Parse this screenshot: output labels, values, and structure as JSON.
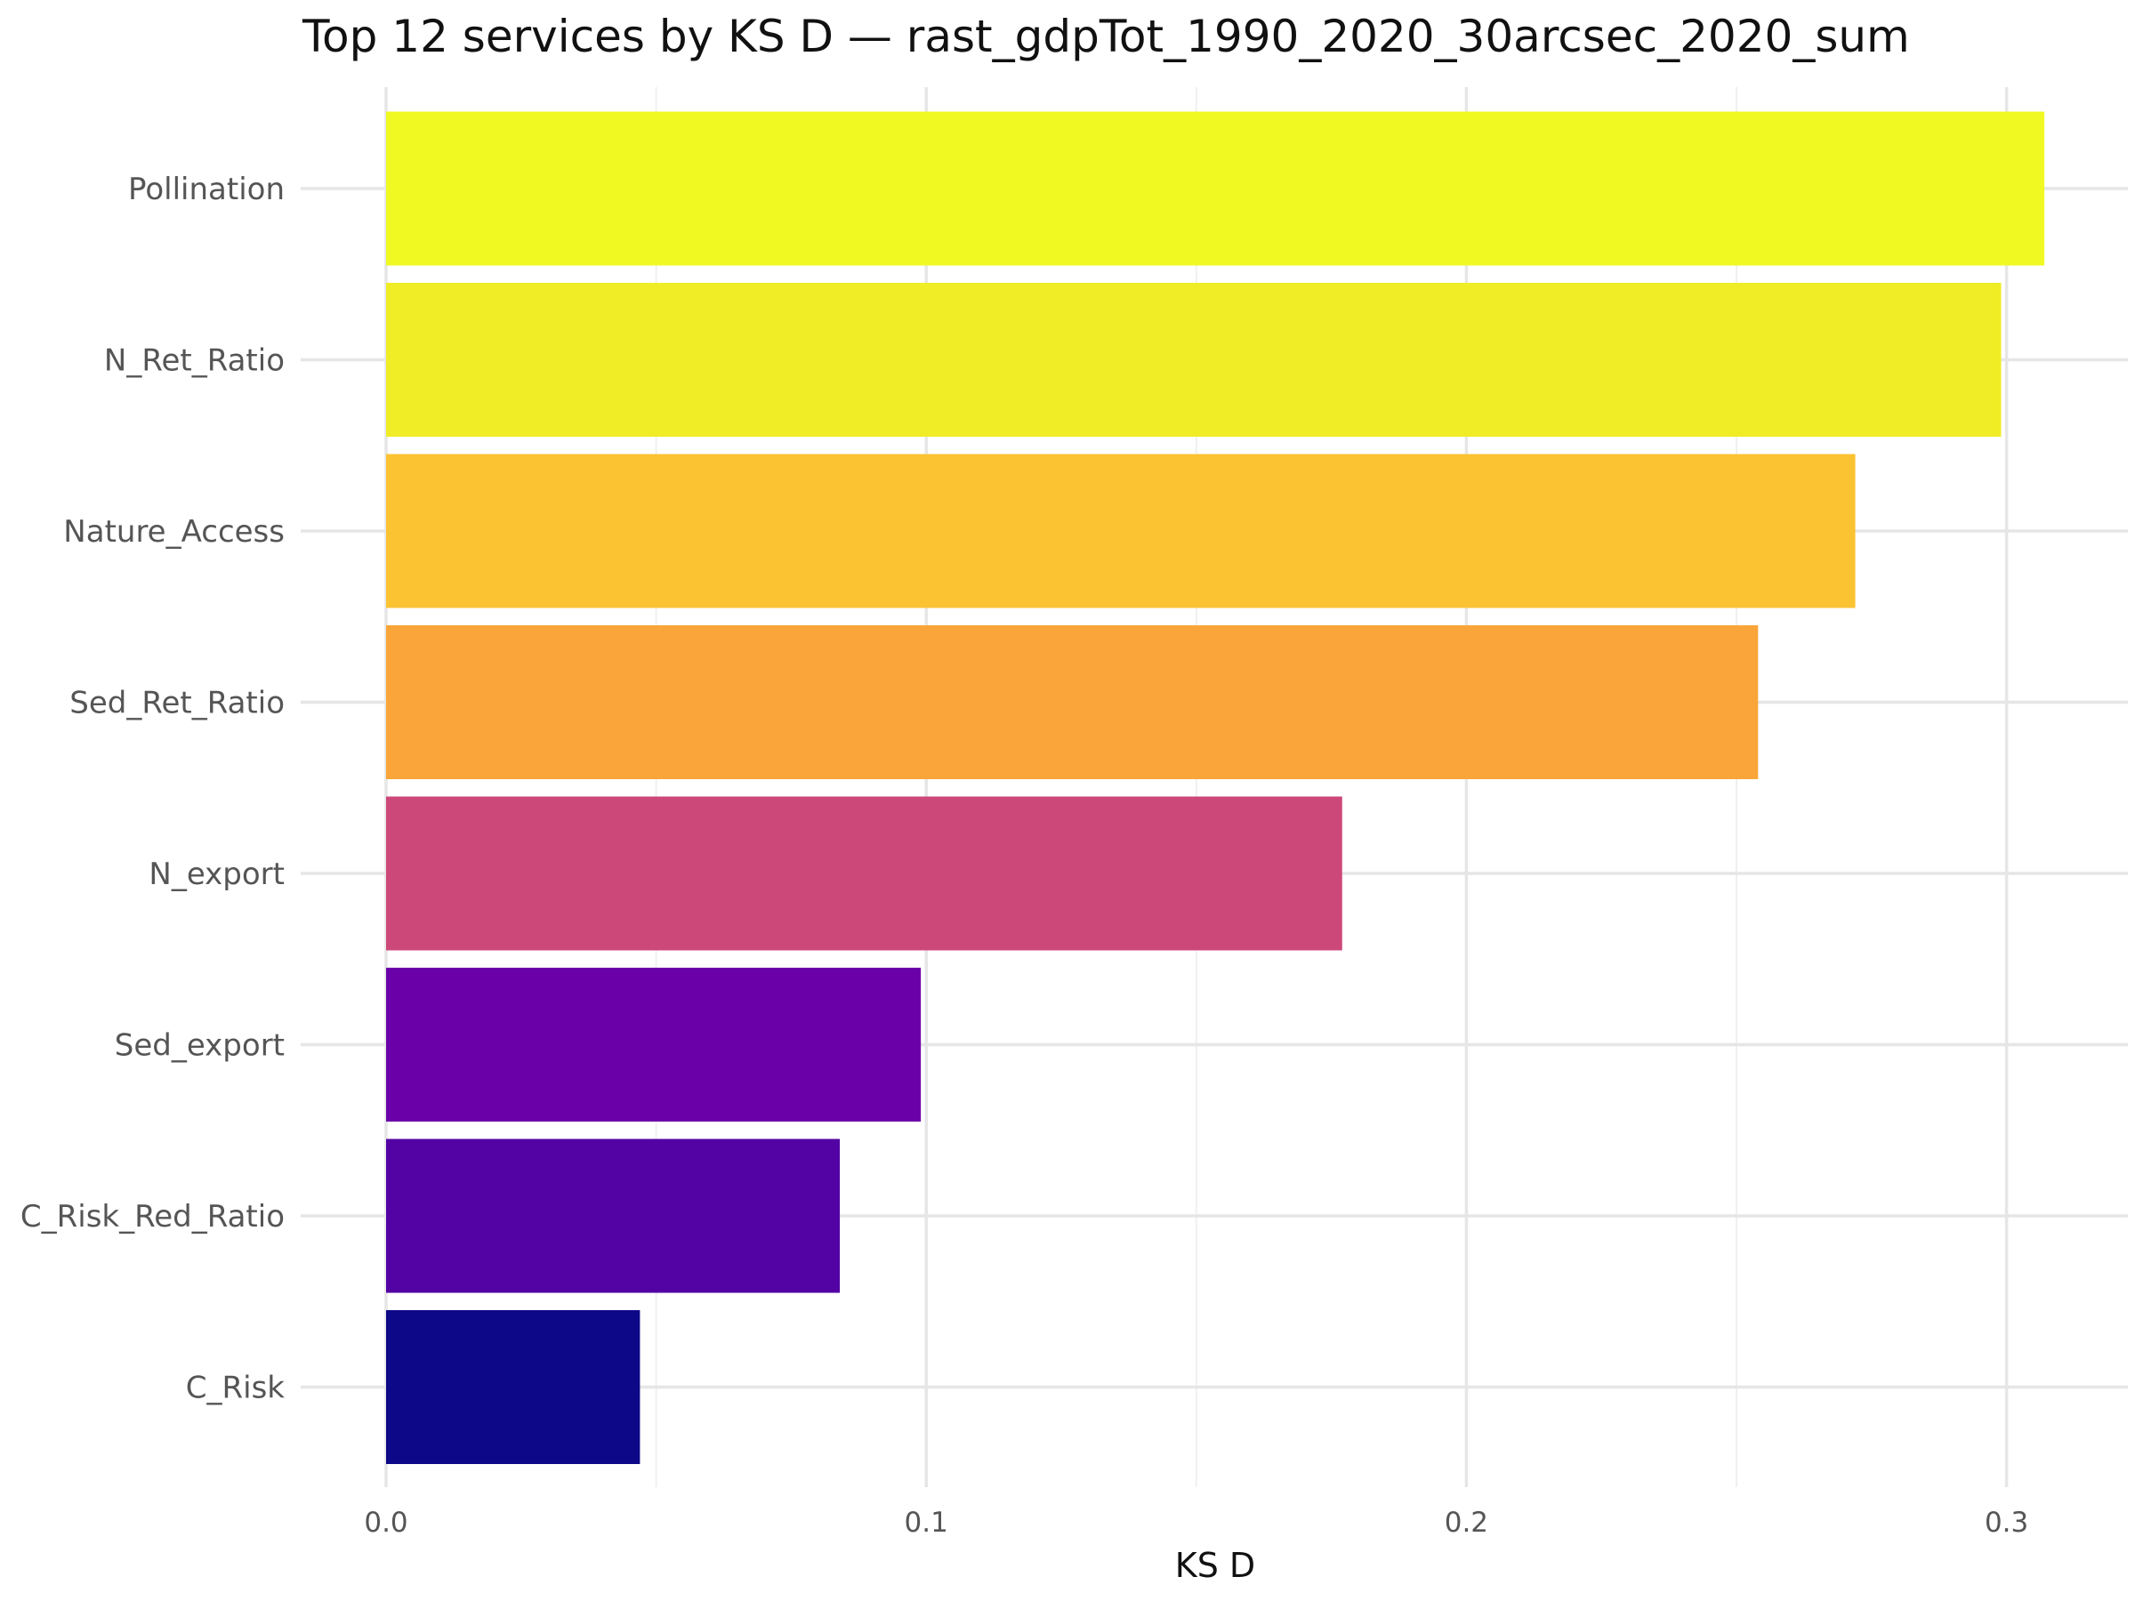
{
  "chart_data": {
    "type": "bar",
    "orientation": "horizontal",
    "title": "Top 12 services by KS D — rast_gdpTot_1990_2020_30arcsec_2020_sum",
    "xlabel": "KS D",
    "ylabel": "",
    "xlim": [
      0,
      0.3225
    ],
    "xticks": [
      0.0,
      0.1,
      0.2,
      0.3
    ],
    "xtick_labels": [
      "0.0",
      "0.1",
      "0.2",
      "0.3"
    ],
    "grid": true,
    "categories": [
      "Pollination",
      "N_Ret_Ratio",
      "Nature_Access",
      "Sed_Ret_Ratio",
      "N_export",
      "Sed_export",
      "C_Risk_Red_Ratio",
      "C_Risk"
    ],
    "values": [
      0.307,
      0.299,
      0.272,
      0.254,
      0.177,
      0.099,
      0.084,
      0.047
    ],
    "colors": [
      "#f0f921",
      "#f0ec25",
      "#fbc232",
      "#f9a539",
      "#cc4879",
      "#6a00a8",
      "#5302a3",
      "#0d0887"
    ]
  }
}
